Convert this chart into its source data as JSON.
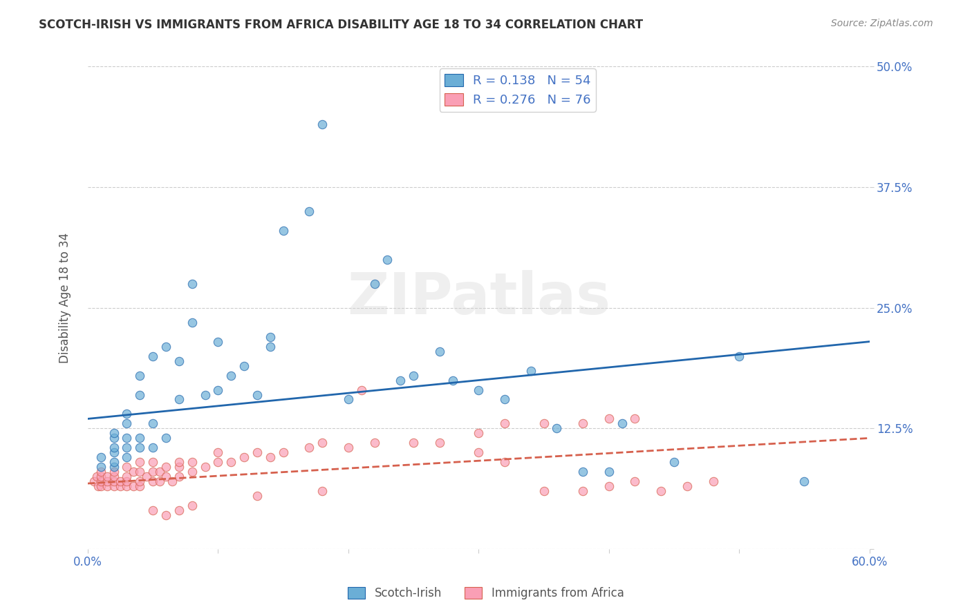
{
  "title": "SCOTCH-IRISH VS IMMIGRANTS FROM AFRICA DISABILITY AGE 18 TO 34 CORRELATION CHART",
  "source": "Source: ZipAtlas.com",
  "xlabel": "",
  "ylabel": "Disability Age 18 to 34",
  "xlim": [
    0.0,
    0.6
  ],
  "ylim": [
    0.0,
    0.52
  ],
  "x_ticks": [
    0.0,
    0.1,
    0.2,
    0.3,
    0.4,
    0.5,
    0.6
  ],
  "x_tick_labels": [
    "0.0%",
    "",
    "",
    "",
    "",
    "",
    "60.0%"
  ],
  "y_ticks": [
    0.0,
    0.125,
    0.25,
    0.375,
    0.5
  ],
  "y_tick_labels": [
    "",
    "12.5%",
    "25.0%",
    "37.5%",
    "50.0%"
  ],
  "blue_color": "#6baed6",
  "pink_color": "#fa9fb5",
  "blue_line_color": "#2166ac",
  "pink_line_color": "#d6604d",
  "watermark": "ZIPatlas",
  "legend_R_blue": "R = 0.138",
  "legend_N_blue": "N = 54",
  "legend_R_pink": "R = 0.276",
  "legend_N_pink": "N = 76",
  "scotch_irish_x": [
    0.01,
    0.01,
    0.02,
    0.02,
    0.02,
    0.02,
    0.02,
    0.02,
    0.03,
    0.03,
    0.03,
    0.03,
    0.03,
    0.04,
    0.04,
    0.04,
    0.04,
    0.05,
    0.05,
    0.05,
    0.06,
    0.06,
    0.07,
    0.07,
    0.08,
    0.08,
    0.09,
    0.1,
    0.1,
    0.11,
    0.12,
    0.13,
    0.14,
    0.14,
    0.15,
    0.17,
    0.18,
    0.2,
    0.22,
    0.23,
    0.24,
    0.25,
    0.27,
    0.28,
    0.3,
    0.32,
    0.34,
    0.36,
    0.38,
    0.4,
    0.41,
    0.45,
    0.5,
    0.55
  ],
  "scotch_irish_y": [
    0.085,
    0.095,
    0.085,
    0.09,
    0.1,
    0.105,
    0.115,
    0.12,
    0.095,
    0.105,
    0.115,
    0.13,
    0.14,
    0.105,
    0.115,
    0.16,
    0.18,
    0.105,
    0.13,
    0.2,
    0.115,
    0.21,
    0.155,
    0.195,
    0.235,
    0.275,
    0.16,
    0.165,
    0.215,
    0.18,
    0.19,
    0.16,
    0.21,
    0.22,
    0.33,
    0.35,
    0.44,
    0.155,
    0.275,
    0.3,
    0.175,
    0.18,
    0.205,
    0.175,
    0.165,
    0.155,
    0.185,
    0.125,
    0.08,
    0.08,
    0.13,
    0.09,
    0.2,
    0.07
  ],
  "africa_x": [
    0.005,
    0.007,
    0.008,
    0.01,
    0.01,
    0.01,
    0.01,
    0.015,
    0.015,
    0.015,
    0.02,
    0.02,
    0.02,
    0.02,
    0.025,
    0.025,
    0.03,
    0.03,
    0.03,
    0.03,
    0.035,
    0.035,
    0.04,
    0.04,
    0.04,
    0.04,
    0.045,
    0.05,
    0.05,
    0.05,
    0.055,
    0.055,
    0.06,
    0.06,
    0.065,
    0.07,
    0.07,
    0.07,
    0.08,
    0.08,
    0.09,
    0.1,
    0.1,
    0.11,
    0.12,
    0.13,
    0.14,
    0.15,
    0.17,
    0.18,
    0.2,
    0.22,
    0.25,
    0.27,
    0.3,
    0.32,
    0.35,
    0.38,
    0.4,
    0.42,
    0.44,
    0.46,
    0.48,
    0.3,
    0.32,
    0.35,
    0.38,
    0.4,
    0.42,
    0.05,
    0.06,
    0.07,
    0.08,
    0.13,
    0.18,
    0.21
  ],
  "africa_y": [
    0.07,
    0.075,
    0.065,
    0.065,
    0.07,
    0.075,
    0.08,
    0.065,
    0.07,
    0.075,
    0.065,
    0.07,
    0.075,
    0.08,
    0.065,
    0.07,
    0.065,
    0.07,
    0.075,
    0.085,
    0.065,
    0.08,
    0.065,
    0.07,
    0.08,
    0.09,
    0.075,
    0.07,
    0.08,
    0.09,
    0.07,
    0.08,
    0.075,
    0.085,
    0.07,
    0.075,
    0.085,
    0.09,
    0.08,
    0.09,
    0.085,
    0.09,
    0.1,
    0.09,
    0.095,
    0.1,
    0.095,
    0.1,
    0.105,
    0.11,
    0.105,
    0.11,
    0.11,
    0.11,
    0.1,
    0.09,
    0.06,
    0.06,
    0.065,
    0.07,
    0.06,
    0.065,
    0.07,
    0.12,
    0.13,
    0.13,
    0.13,
    0.135,
    0.135,
    0.04,
    0.035,
    0.04,
    0.045,
    0.055,
    0.06,
    0.165
  ],
  "blue_trend_x": [
    0.0,
    0.6
  ],
  "blue_trend_y": [
    0.135,
    0.215
  ],
  "pink_trend_x": [
    0.0,
    0.6
  ],
  "pink_trend_y": [
    0.068,
    0.115
  ],
  "background_color": "#ffffff",
  "grid_color": "#cccccc"
}
